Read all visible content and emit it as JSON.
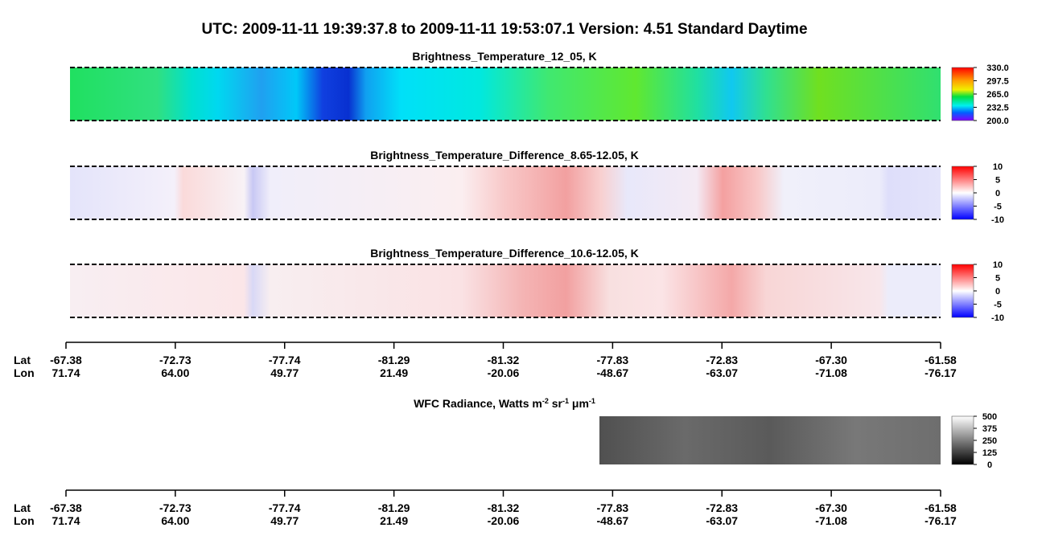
{
  "header": {
    "title": "UTC:  2009-11-11   19:39:37.8  to  2009-11-11   19:53:07.1    Version: 4.51  Standard Daytime"
  },
  "panels": [
    {
      "title": "Brightness_Temperature_12_05, K",
      "colorbar_ticks": [
        "330.0",
        "297.5",
        "265.0",
        "232.5",
        "200.0"
      ]
    },
    {
      "title": "Brightness_Temperature_Difference_8.65-12.05, K",
      "colorbar_ticks": [
        "10",
        "5",
        "0",
        "-5",
        "-10"
      ]
    },
    {
      "title": "Brightness_Temperature_Difference_10.6-12.05, K",
      "colorbar_ticks": [
        "10",
        "5",
        "0",
        "-5",
        "-10"
      ]
    }
  ],
  "axis": {
    "lat_label": "Lat",
    "lon_label": "Lon",
    "lat": [
      "-67.38",
      "-72.73",
      "-77.74",
      "-81.29",
      "-81.32",
      "-77.83",
      "-72.83",
      "-67.30",
      "-61.58"
    ],
    "lon": [
      "71.74",
      "64.00",
      "49.77",
      "21.49",
      "-20.06",
      "-48.67",
      "-63.07",
      "-71.08",
      "-76.17"
    ]
  },
  "wfc": {
    "title_parts": [
      "WFC Radiance, Watts m",
      "-2",
      " sr",
      "-1",
      " μm",
      "-1"
    ],
    "colorbar_ticks": [
      "500",
      "375",
      "250",
      "125",
      "0"
    ]
  }
}
